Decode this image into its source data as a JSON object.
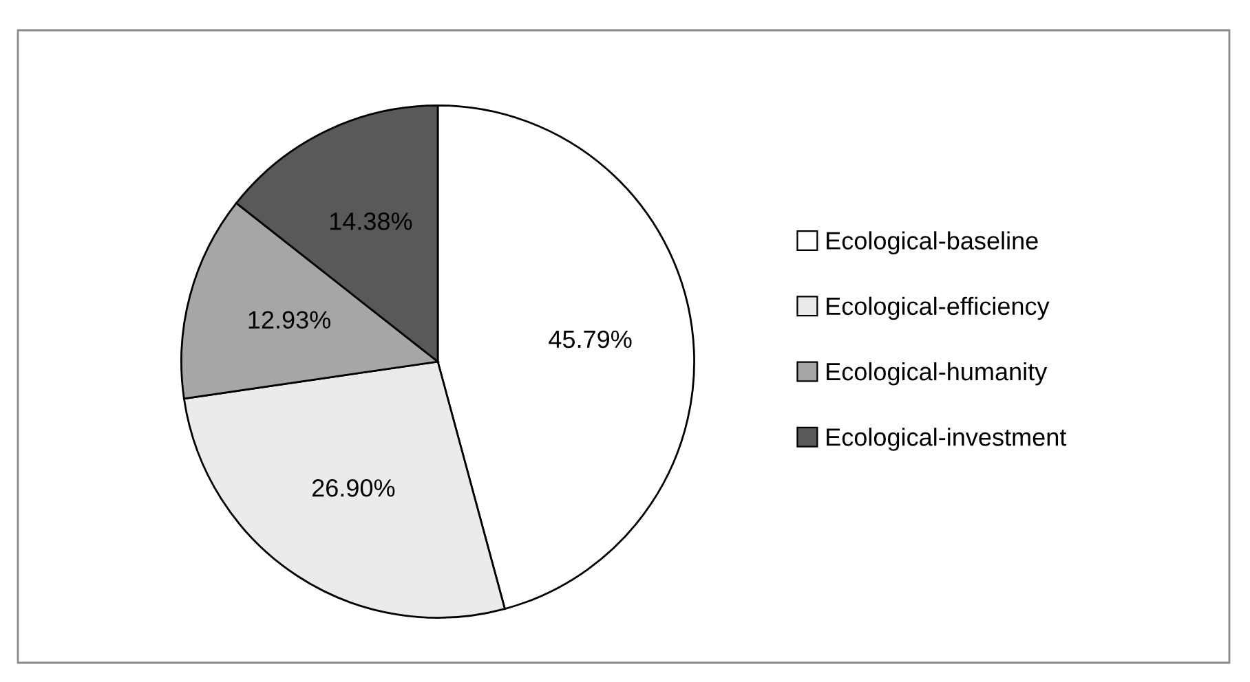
{
  "chart_data": {
    "type": "pie",
    "categories": [
      "Ecological-baseline",
      "Ecological-efficiency",
      "Ecological-humanity",
      "Ecological-investment"
    ],
    "values": [
      45.79,
      26.9,
      12.93,
      14.38
    ],
    "value_labels": [
      "45.79%",
      "26.90%",
      "12.93%",
      "14.38%"
    ],
    "colors": [
      "#ffffff",
      "#ebebeb",
      "#a6a6a6",
      "#595959"
    ],
    "legend": "right"
  }
}
